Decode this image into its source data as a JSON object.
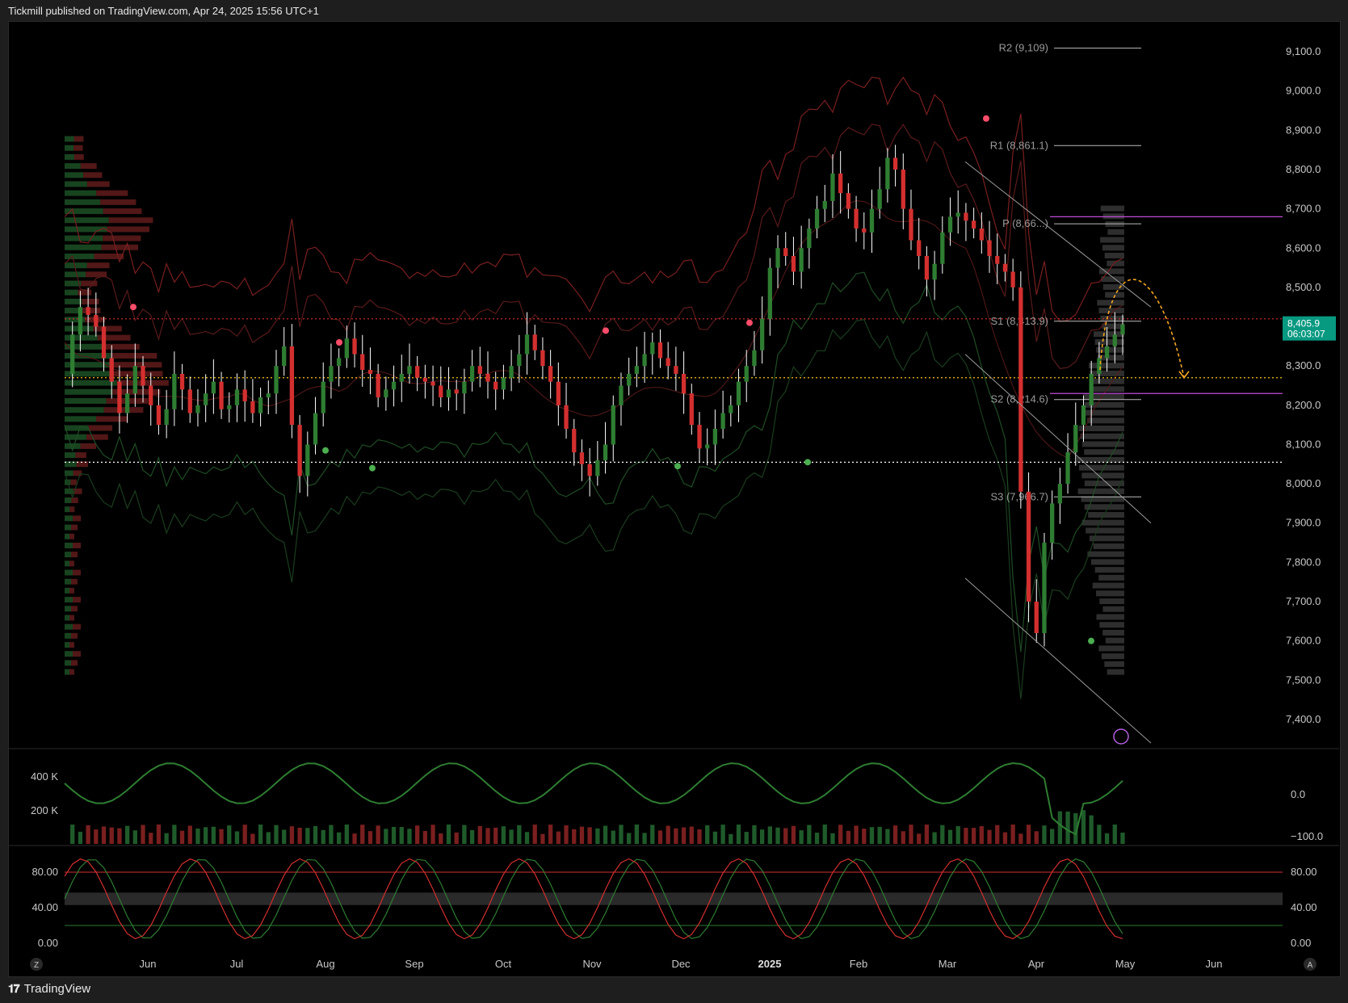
{
  "header": {
    "text": "Tickmill published on TradingView.com, Apr 24, 2025 15:56 UTC+1"
  },
  "footer": {
    "brand": "TradingView",
    "logo": "tv-logo-icon"
  },
  "colors": {
    "bull": "#2e7d32",
    "bear": "#d32f2f",
    "wick": "#ffffff",
    "priceTag": "#089981",
    "orange": "#f5a623",
    "magenta": "#c04ad8"
  },
  "chart_data": [
    {
      "type": "candlestick",
      "pane": "price",
      "price_axis": {
        "ticks": [
          "9,100.0",
          "9,000.0",
          "8,900.0",
          "8,800.0",
          "8,700.0",
          "8,600.0",
          "8,500.0",
          "8,400.0",
          "8,300.0",
          "8,200.0",
          "8,100.0",
          "8,000.0",
          "7,900.0",
          "7,800.0",
          "7,700.0",
          "7,600.0",
          "7,500.0",
          "7,400.0"
        ],
        "ylim": [
          7330,
          9170
        ]
      },
      "time_axis": {
        "ticks": [
          "Jun",
          "Jul",
          "Aug",
          "Sep",
          "Oct",
          "Nov",
          "Dec",
          "2025",
          "Feb",
          "Mar",
          "Apr",
          "May",
          "Jun"
        ]
      },
      "last_price": {
        "value": "8,405.9",
        "countdown": "06:03:07"
      },
      "pivots": [
        {
          "label": "R2 (9,109)",
          "value": 9109
        },
        {
          "label": "R1 (8,861.1)",
          "value": 8861.1
        },
        {
          "label": "P (8,66...)",
          "value": 8662
        },
        {
          "label": "S1 (8,413.9)",
          "value": 8413.9
        },
        {
          "label": "S2 (8,214.6)",
          "value": 8214.6
        },
        {
          "label": "S3 (7,966.7)",
          "value": 7966.7
        }
      ],
      "horizontal_levels": [
        {
          "value": 8420,
          "color": "#d32f2f",
          "style": "dotted"
        },
        {
          "value": 8270,
          "color": "#f5c518",
          "style": "dotted"
        },
        {
          "value": 8055,
          "color": "#ffffff",
          "style": "dotted"
        },
        {
          "value": 8680,
          "color": "#c04ad8",
          "style": "solid"
        },
        {
          "value": 8230,
          "color": "#c04ad8",
          "style": "solid"
        }
      ],
      "close_path": [
        8280,
        8380,
        8450,
        8430,
        8400,
        8320,
        8260,
        8180,
        8230,
        8300,
        8250,
        8200,
        8150,
        8190,
        8280,
        8240,
        8180,
        8200,
        8230,
        8260,
        8190,
        8200,
        8240,
        8210,
        8180,
        8220,
        8230,
        8300,
        8350,
        8150,
        8020,
        8100,
        8180,
        8260,
        8300,
        8320,
        8370,
        8330,
        8290,
        8280,
        8220,
        8240,
        8260,
        8280,
        8300,
        8270,
        8260,
        8250,
        8220,
        8240,
        8230,
        8260,
        8300,
        8280,
        8260,
        8240,
        8270,
        8300,
        8330,
        8380,
        8340,
        8300,
        8260,
        8200,
        8140,
        8080,
        8050,
        8020,
        8060,
        8100,
        8200,
        8250,
        8280,
        8300,
        8330,
        8360,
        8320,
        8300,
        8280,
        8230,
        8150,
        8090,
        8100,
        8140,
        8180,
        8200,
        8260,
        8300,
        8340,
        8420,
        8550,
        8600,
        8580,
        8540,
        8600,
        8650,
        8700,
        8720,
        8790,
        8740,
        8700,
        8650,
        8640,
        8700,
        8750,
        8830,
        8800,
        8700,
        8620,
        8580,
        8520,
        8560,
        8640,
        8680,
        8690,
        8670,
        8650,
        8620,
        8580,
        8560,
        8540,
        8500,
        7980,
        7700,
        7620,
        7850,
        7950,
        8000,
        8080,
        8150,
        8200,
        8280,
        8320,
        8350,
        8380,
        8405.9
      ],
      "forecast_arrow": {
        "from": 8500,
        "peak": 8530,
        "to": 8270
      }
    },
    {
      "type": "bar",
      "pane": "volume",
      "y_ticks": [
        "400 K",
        "200 K"
      ],
      "oscillator_ticks": [
        "0.0",
        "−100.0"
      ]
    },
    {
      "type": "line",
      "pane": "stochastic",
      "y_ticks_left": [
        "80.00",
        "40.00",
        "0.00"
      ],
      "y_ticks_right": [
        "80.00",
        "40.00",
        "0.00"
      ],
      "levels": [
        80,
        50,
        20
      ]
    }
  ],
  "pane_buttons": {
    "left": "Z",
    "right": "A"
  }
}
